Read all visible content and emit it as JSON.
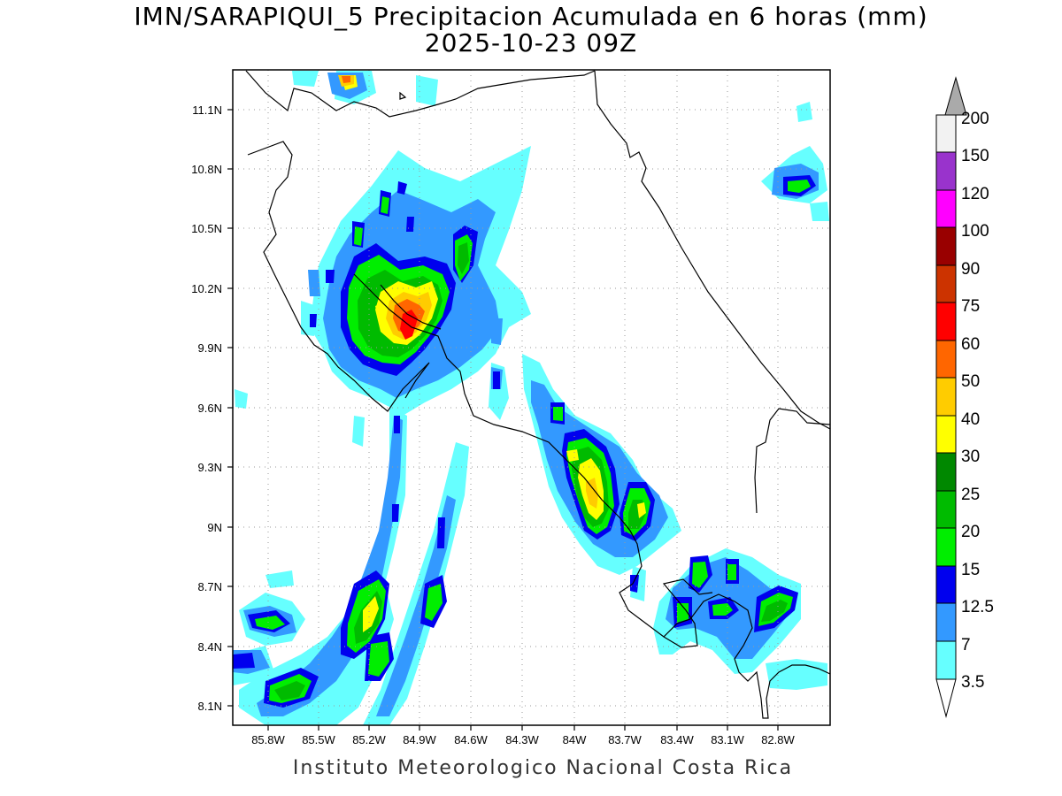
{
  "header": {
    "title": "IMN/SARAPIQUI_5 Precipitacion Acumulada en 6 horas (mm)",
    "subtitle": "2025-10-23 09Z"
  },
  "footer": {
    "credit": "Instituto Meteorologico Nacional Costa Rica"
  },
  "axes": {
    "lon_labels": [
      "85.8W",
      "85.5W",
      "85.2W",
      "84.9W",
      "84.6W",
      "84.3W",
      "84W",
      "83.7W",
      "83.4W",
      "83.1W",
      "82.8W"
    ],
    "lat_labels": [
      "11.1N",
      "10.8N",
      "10.5N",
      "10.2N",
      "9.9N",
      "9.6N",
      "9.3N",
      "9N",
      "8.7N",
      "8.4N",
      "8.1N"
    ],
    "grid": true
  },
  "colorbar": {
    "unit": "mm",
    "levels": [
      "3.5",
      "7",
      "12.5",
      "15",
      "20",
      "25",
      "30",
      "40",
      "50",
      "60",
      "75",
      "90",
      "100",
      "120",
      "150",
      "200"
    ],
    "colors": [
      "#66ffff",
      "#3399ff",
      "#0000ee",
      "#00ee00",
      "#00bb00",
      "#008800",
      "#ffff00",
      "#ffcc00",
      "#ff6600",
      "#ff0000",
      "#cc3300",
      "#990000",
      "#ff00ff",
      "#9933cc",
      "#f2f2f2"
    ],
    "under_color": "#ffffff",
    "over_color": "#aaaaaa"
  }
}
